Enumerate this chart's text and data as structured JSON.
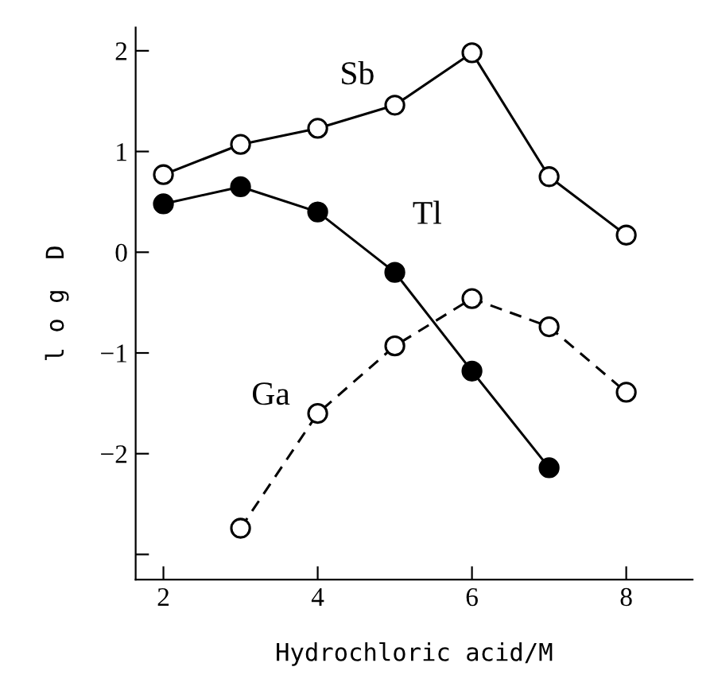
{
  "chart_data": {
    "type": "line",
    "xlabel": "Hydrochloric acid/M",
    "ylabel": "l o g  D",
    "xlim": [
      1.64,
      8.86
    ],
    "ylim": [
      -3.25,
      2.23
    ],
    "xticks": [
      2,
      4,
      6,
      8
    ],
    "yticks": [
      {
        "value": -3,
        "label": null
      },
      -2,
      -1,
      0,
      1,
      2
    ],
    "marker": "circle",
    "grid": false,
    "legend": false,
    "series": [
      {
        "name": "Sb",
        "color": "#000000",
        "line_style": "solid",
        "x": [
          2,
          3,
          4,
          5,
          6,
          7,
          8
        ],
        "values": [
          0.77,
          1.07,
          1.23,
          1.46,
          1.98,
          0.75,
          0.17
        ],
        "colors": [
          "#ffffff",
          "#ffffff",
          "#ffffff",
          "#ffffff",
          "#ffffff",
          "#ffffff",
          "#ffffff"
        ]
      },
      {
        "name": "Tl",
        "color": "#000000",
        "line_style": "solid",
        "x": [
          2,
          3,
          4,
          5,
          6,
          7
        ],
        "values": [
          0.48,
          0.65,
          0.4,
          -0.2,
          -1.18,
          -2.14
        ],
        "colors": [
          "#000000",
          "#000000",
          "#000000",
          "#000000",
          "#000000",
          "#000000"
        ]
      },
      {
        "name": "Ga",
        "color": "#000000",
        "line_style": "dashed",
        "x": [
          3,
          4,
          5,
          6,
          7,
          8
        ],
        "values": [
          -2.74,
          -1.6,
          -0.93,
          -0.46,
          -0.74,
          -1.39
        ],
        "colors": [
          "#ffffff",
          "#ffffff",
          "#ffffff",
          "#ffffff",
          "#ffffff",
          "#ffffff"
        ]
      }
    ]
  }
}
